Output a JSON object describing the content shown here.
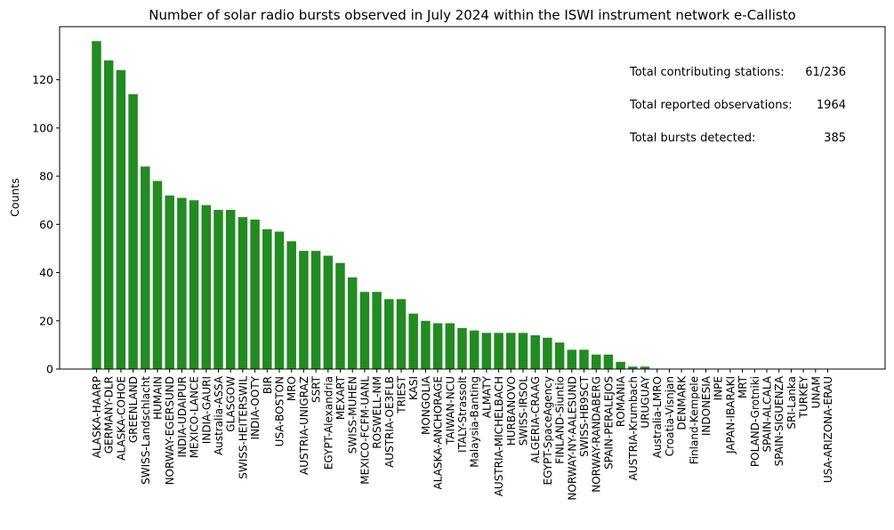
{
  "chart_data": {
    "type": "bar",
    "title": "Number of solar radio bursts observed in July 2024 within the ISWI instrument network e-Callisto",
    "xlabel": "",
    "ylabel": "Counts",
    "ylim": [
      0,
      142
    ],
    "yticks": [
      0,
      20,
      40,
      60,
      80,
      100,
      120
    ],
    "grid": false,
    "bar_color": "#228b22",
    "categories": [
      "ALASKA-HAARP",
      "GERMANY-DLR",
      "ALASKA-COHOE",
      "GREENLAND",
      "SWISS-Landschlacht",
      "HUMAIN",
      "NORWAY-EGERSUND",
      "INDIA-UDAIPUR",
      "MEXICO-LANCE",
      "INDIA-GAURI",
      "Australia-ASSA",
      "GLASGOW",
      "SWISS-HEITERSWIL",
      "INDIA-OOTY",
      "BIR",
      "USA-BOSTON",
      "MRO",
      "AUSTRIA-UNIGRAZ",
      "SSRT",
      "EGYPT-Alexandria",
      "MEXART",
      "SWISS-MUHEN",
      "MEXICO-FCFM-UANL",
      "ROSWELL-NM",
      "AUSTRIA-OE3FLB",
      "TRIEST",
      "KASI",
      "MONGOLIA",
      "ALASKA-ANCHORAGE",
      "TAIWAN-NCU",
      "ITALY-Strassolt",
      "Malaysia-Banting",
      "ALMATY",
      "AUSTRIA-MICHELBACH",
      "HURBANOVO",
      "SWISS-IRSOL",
      "ALGERIA-CRAAG",
      "EGYPT-SpaceAgency",
      "FINLAND-Siuntio",
      "NORWAY-NY-AALESUND",
      "SWISS-HB9SCT",
      "NORWAY-RANDABERG",
      "SPAIN-PERALEJOS",
      "ROMANIA",
      "AUSTRIA-Krumbach",
      "URUGUAY",
      "Australia-LMRO",
      "Croatia-Visnjan",
      "DENMARK",
      "Finland-Kempele",
      "INDONESIA",
      "INPE",
      "JAPAN-IBARAKI",
      "MRT",
      "POLAND-Grotniki",
      "SPAIN-ALCALA",
      "SPAIN-SIGUENZA",
      "SRI-Lanka",
      "TURKEY",
      "UNAM",
      "USA-ARIZONA-ERAU"
    ],
    "values": [
      136,
      128,
      124,
      114,
      84,
      78,
      72,
      71,
      70,
      68,
      66,
      66,
      63,
      62,
      58,
      57,
      53,
      49,
      49,
      47,
      44,
      38,
      32,
      32,
      29,
      29,
      23,
      20,
      19,
      19,
      17,
      16,
      15,
      15,
      15,
      15,
      14,
      13,
      11,
      8,
      8,
      6,
      6,
      3,
      1,
      1,
      0,
      0,
      0,
      0,
      0,
      0,
      0,
      0,
      0,
      0,
      0,
      0,
      0,
      0,
      0
    ]
  },
  "annotations": [
    {
      "label": "Total contributing stations:",
      "value": "61/236"
    },
    {
      "label": "Total reported observations:",
      "value": "1964"
    },
    {
      "label": "Total bursts detected:",
      "value": "385"
    }
  ]
}
